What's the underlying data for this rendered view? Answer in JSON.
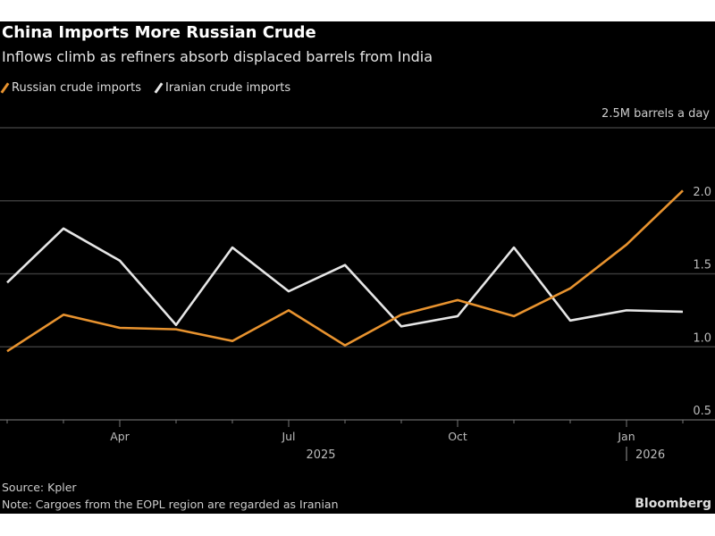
{
  "chart_data": {
    "type": "line",
    "title": "China Imports More Russian Crude",
    "subtitle": "Inflows climb as refiners absorb displaced barrels from India",
    "unit_label": "2.5M barrels a day",
    "x": [
      "2025-02",
      "2025-03",
      "2025-04",
      "2025-05",
      "2025-06",
      "2025-07",
      "2025-08",
      "2025-09",
      "2025-10",
      "2025-11",
      "2025-12",
      "2026-01",
      "2026-02"
    ],
    "x_tick_labels": [
      {
        "month": "2025-04",
        "label": "Apr"
      },
      {
        "month": "2025-07",
        "label": "Jul"
      },
      {
        "month": "2025-10",
        "label": "Oct"
      },
      {
        "month": "2026-01",
        "label": "Jan"
      }
    ],
    "year_labels": [
      {
        "month": "2025-07",
        "label": "2025"
      },
      {
        "month": "2026-01",
        "label": "2026"
      }
    ],
    "y_ticks": [
      "2.0",
      "1.5",
      "1.0",
      "0.5"
    ],
    "ylim": [
      0.5,
      2.5
    ],
    "grid": true,
    "legend_position": "top-left",
    "series": [
      {
        "name": "Russian crude imports",
        "color": "#e8932f",
        "values": [
          0.97,
          1.22,
          1.13,
          1.12,
          1.04,
          1.25,
          1.01,
          1.22,
          1.32,
          1.21,
          1.4,
          1.7,
          2.07
        ]
      },
      {
        "name": "Iranian crude imports",
        "color": "#e6e6e6",
        "values": [
          1.44,
          1.81,
          1.59,
          1.15,
          1.68,
          1.38,
          1.56,
          1.14,
          1.21,
          1.68,
          1.18,
          1.25,
          1.24
        ]
      }
    ]
  },
  "footer": {
    "source": "Source: Kpler",
    "note": "Note: Cargoes from the EOPL region are regarded as Iranian",
    "brand": "Bloomberg"
  }
}
